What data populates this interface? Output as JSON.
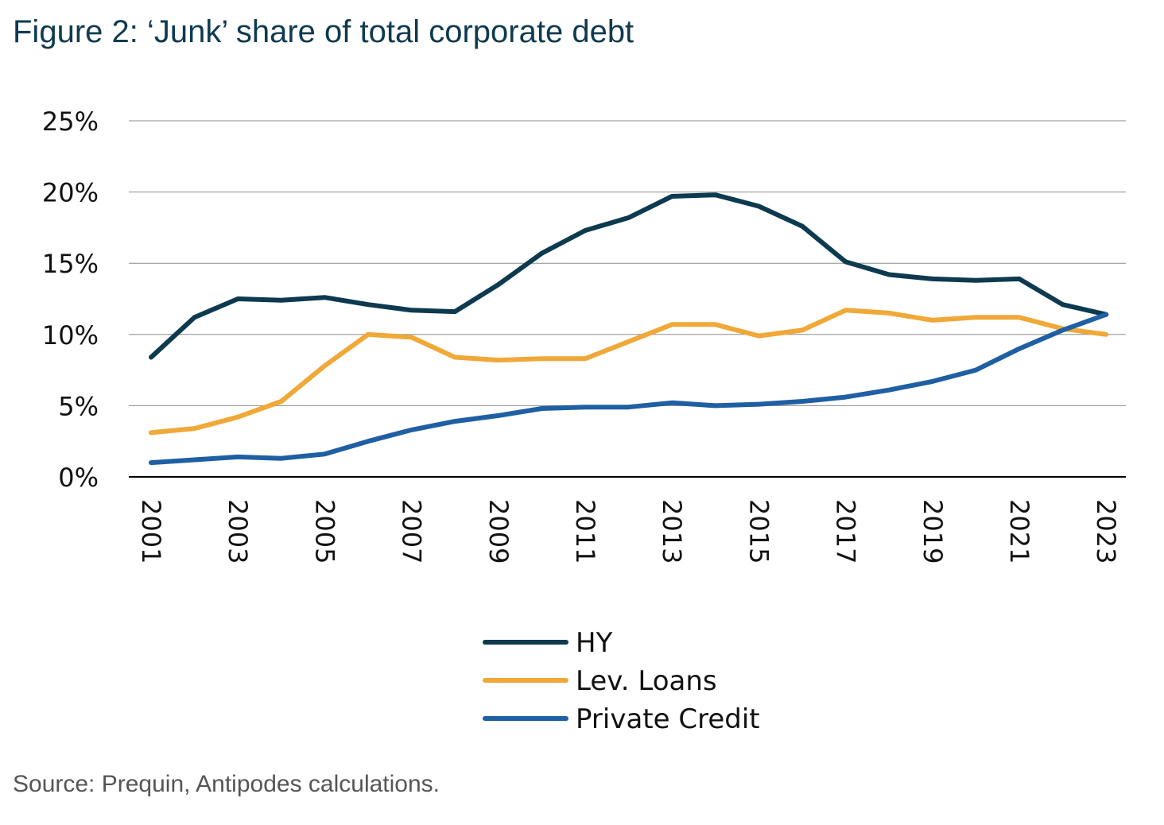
{
  "title": "Figure 2: ‘Junk’ share of total corporate debt",
  "source": "Source: Prequin, Antipodes calculations.",
  "chart_data": {
    "type": "line",
    "title": "Figure 2: ‘Junk’ share of total corporate debt",
    "x": [
      2001,
      2002,
      2003,
      2004,
      2005,
      2006,
      2007,
      2008,
      2009,
      2010,
      2011,
      2012,
      2013,
      2014,
      2015,
      2016,
      2017,
      2018,
      2019,
      2020,
      2021,
      2022,
      2023
    ],
    "x_tick_labels": [
      "2001",
      "2003",
      "2005",
      "2007",
      "2009",
      "2011",
      "2013",
      "2015",
      "2017",
      "2019",
      "2021",
      "2023"
    ],
    "y_tick_labels": [
      "0%",
      "5%",
      "10%",
      "15%",
      "20%",
      "25%"
    ],
    "ylim": [
      0,
      25
    ],
    "y_unit": "%",
    "grid": true,
    "legend_position": "bottom-center",
    "series": [
      {
        "name": "HY",
        "color": "#0d3a4f",
        "values": [
          8.4,
          11.2,
          12.5,
          12.4,
          12.6,
          12.1,
          11.7,
          11.6,
          13.5,
          15.7,
          17.3,
          18.2,
          19.7,
          19.8,
          19.0,
          17.6,
          15.1,
          14.2,
          13.9,
          13.8,
          13.9,
          12.1,
          11.4
        ]
      },
      {
        "name": "Lev. Loans",
        "color": "#f0a838",
        "values": [
          3.1,
          3.4,
          4.2,
          5.3,
          7.8,
          10.0,
          9.8,
          8.4,
          8.2,
          8.3,
          8.3,
          9.5,
          10.7,
          10.7,
          9.9,
          10.3,
          11.7,
          11.5,
          11.0,
          11.2,
          11.2,
          10.4,
          10.0
        ]
      },
      {
        "name": "Private Credit",
        "color": "#1f5fa3",
        "values": [
          1.0,
          1.2,
          1.4,
          1.3,
          1.6,
          2.5,
          3.3,
          3.9,
          4.3,
          4.8,
          4.9,
          4.9,
          5.2,
          5.0,
          5.1,
          5.3,
          5.6,
          6.1,
          6.7,
          7.5,
          9.0,
          10.3,
          11.4
        ]
      }
    ]
  }
}
